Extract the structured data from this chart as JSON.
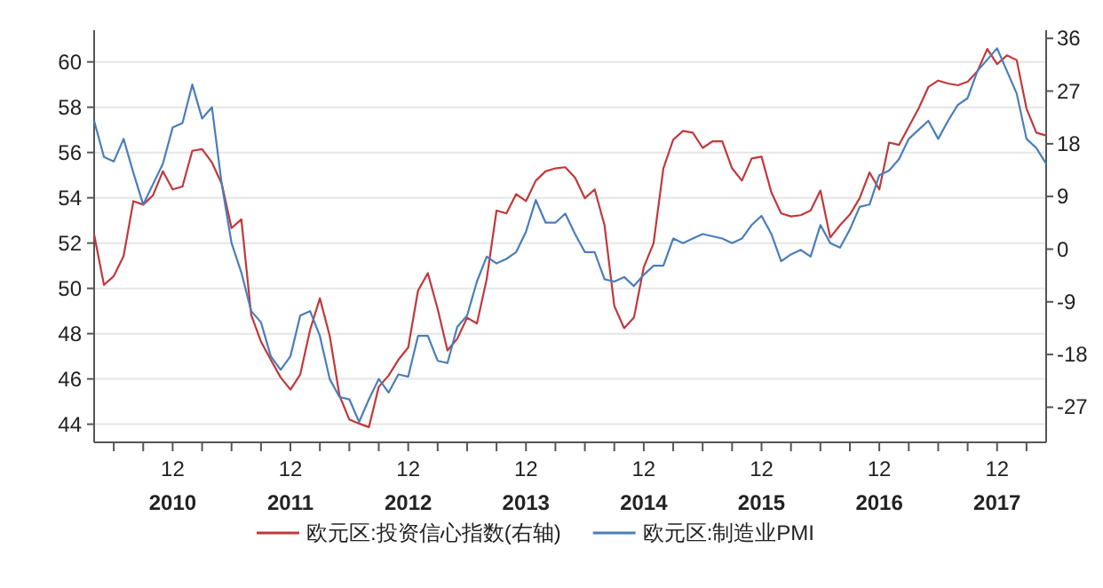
{
  "chart_data": {
    "type": "line",
    "grid": "y",
    "legend": "bottom",
    "x": [
      "2010-04",
      "2010-05",
      "2010-06",
      "2010-07",
      "2010-08",
      "2010-09",
      "2010-10",
      "2010-11",
      "2010-12",
      "2011-01",
      "2011-02",
      "2011-03",
      "2011-04",
      "2011-05",
      "2011-06",
      "2011-07",
      "2011-08",
      "2011-09",
      "2011-10",
      "2011-11",
      "2011-12",
      "2012-01",
      "2012-02",
      "2012-03",
      "2012-04",
      "2012-05",
      "2012-06",
      "2012-07",
      "2012-08",
      "2012-09",
      "2012-10",
      "2012-11",
      "2012-12",
      "2013-01",
      "2013-02",
      "2013-03",
      "2013-04",
      "2013-05",
      "2013-06",
      "2013-07",
      "2013-08",
      "2013-09",
      "2013-10",
      "2013-11",
      "2013-12",
      "2014-01",
      "2014-02",
      "2014-03",
      "2014-04",
      "2014-05",
      "2014-06",
      "2014-07",
      "2014-08",
      "2014-09",
      "2014-10",
      "2014-11",
      "2014-12",
      "2015-01",
      "2015-02",
      "2015-03",
      "2015-04",
      "2015-05",
      "2015-06",
      "2015-07",
      "2015-08",
      "2015-09",
      "2015-10",
      "2015-11",
      "2015-12",
      "2016-01",
      "2016-02",
      "2016-03",
      "2016-04",
      "2016-05",
      "2016-06",
      "2016-07",
      "2016-08",
      "2016-09",
      "2016-10",
      "2016-11",
      "2016-12",
      "2017-01",
      "2017-02",
      "2017-03",
      "2017-04",
      "2017-05",
      "2017-06",
      "2017-07",
      "2017-08",
      "2017-09",
      "2017-10",
      "2017-11",
      "2017-12",
      "2018-01",
      "2018-02",
      "2018-03",
      "2018-04",
      "2018-05"
    ],
    "xlim": [
      "2010-04",
      "2018-05"
    ],
    "xticks": [
      {
        "value": "2010-06",
        "label": null
      },
      {
        "value": "2010-09",
        "label": null
      },
      {
        "value": "2010-12",
        "label": "12\n2010"
      },
      {
        "value": "2011-03",
        "label": null
      },
      {
        "value": "2011-06",
        "label": null
      },
      {
        "value": "2011-09",
        "label": null
      },
      {
        "value": "2011-12",
        "label": "12\n2011"
      },
      {
        "value": "2012-03",
        "label": null
      },
      {
        "value": "2012-06",
        "label": null
      },
      {
        "value": "2012-09",
        "label": null
      },
      {
        "value": "2012-12",
        "label": "12\n2012"
      },
      {
        "value": "2013-03",
        "label": null
      },
      {
        "value": "2013-06",
        "label": null
      },
      {
        "value": "2013-09",
        "label": null
      },
      {
        "value": "2013-12",
        "label": "12\n2013"
      },
      {
        "value": "2014-03",
        "label": null
      },
      {
        "value": "2014-06",
        "label": null
      },
      {
        "value": "2014-09",
        "label": null
      },
      {
        "value": "2014-12",
        "label": "12\n2014"
      },
      {
        "value": "2015-03",
        "label": null
      },
      {
        "value": "2015-06",
        "label": null
      },
      {
        "value": "2015-09",
        "label": null
      },
      {
        "value": "2015-12",
        "label": "12\n2015"
      },
      {
        "value": "2016-03",
        "label": null
      },
      {
        "value": "2016-06",
        "label": null
      },
      {
        "value": "2016-09",
        "label": null
      },
      {
        "value": "2016-12",
        "label": "12\n2016"
      },
      {
        "value": "2017-03",
        "label": null
      },
      {
        "value": "2017-06",
        "label": null
      },
      {
        "value": "2017-09",
        "label": null
      },
      {
        "value": "2017-12",
        "label": "12\n2017"
      },
      {
        "value": "2018-03",
        "label": null
      }
    ],
    "ylim": [
      43.2,
      61.4
    ],
    "yticks": [
      44,
      46,
      48,
      50,
      52,
      54,
      56,
      58,
      60
    ],
    "y2lim": [
      -33,
      37.4
    ],
    "y2ticks": [
      -27,
      -18,
      -9,
      0,
      9,
      18,
      27,
      36
    ],
    "series": [
      {
        "name": "欧元区:投资信心指数(右轴)",
        "color": "#c0393b",
        "axis": "y2",
        "values": [
          2.5,
          -6.1,
          -4.6,
          -1.2,
          8.2,
          7.6,
          9.2,
          13.3,
          10.2,
          10.7,
          16.8,
          17.1,
          14.8,
          11.2,
          3.6,
          5.1,
          -11.2,
          -15.8,
          -18.9,
          -21.9,
          -24.0,
          -21.4,
          -13.8,
          -8.4,
          -14.8,
          -25.0,
          -29.1,
          -29.8,
          -30.4,
          -23.5,
          -21.6,
          -18.9,
          -16.8,
          -7.1,
          -4.1,
          -10.2,
          -17.3,
          -15.3,
          -11.7,
          -12.7,
          -5.1,
          6.6,
          6.1,
          9.4,
          8.2,
          11.7,
          13.3,
          13.8,
          14.0,
          12.2,
          8.7,
          10.2,
          4.1,
          -9.7,
          -13.5,
          -11.7,
          -3.1,
          1.0,
          13.8,
          18.7,
          20.2,
          19.9,
          17.3,
          18.4,
          18.4,
          13.8,
          11.7,
          15.5,
          15.8,
          9.7,
          6.1,
          5.6,
          5.8,
          6.6,
          10.0,
          2.0,
          4.1,
          5.9,
          8.7,
          13.1,
          10.2,
          18.2,
          17.8,
          20.9,
          24.0,
          27.7,
          28.8,
          28.3,
          28.0,
          28.6,
          30.4,
          34.2,
          31.6,
          33.1,
          32.3,
          24.0,
          19.9,
          19.4
        ]
      },
      {
        "name": "欧元区:制造业PMI",
        "color": "#4a7ebb",
        "axis": "y",
        "values": [
          57.4,
          55.8,
          55.6,
          56.6,
          55.1,
          53.7,
          54.6,
          55.5,
          57.1,
          57.3,
          59.0,
          57.5,
          58.0,
          54.6,
          52.0,
          50.7,
          49.0,
          48.5,
          47.0,
          46.4,
          47.0,
          48.8,
          49.0,
          47.9,
          46.0,
          45.2,
          45.1,
          44.1,
          45.1,
          46.0,
          45.4,
          46.2,
          46.1,
          47.9,
          47.9,
          46.8,
          46.7,
          48.3,
          48.8,
          50.3,
          51.4,
          51.1,
          51.3,
          51.6,
          52.5,
          53.9,
          52.9,
          52.9,
          53.3,
          52.4,
          51.6,
          51.6,
          50.4,
          50.3,
          50.5,
          50.1,
          50.6,
          51.0,
          51.0,
          52.2,
          52.0,
          52.2,
          52.4,
          52.3,
          52.2,
          52.0,
          52.2,
          52.8,
          53.2,
          52.4,
          51.2,
          51.5,
          51.7,
          51.4,
          52.8,
          52.0,
          51.8,
          52.6,
          53.6,
          53.7,
          55.0,
          55.2,
          55.7,
          56.6,
          57.0,
          57.4,
          56.6,
          57.4,
          58.1,
          58.4,
          59.6,
          60.1,
          60.6,
          59.6,
          58.6,
          56.6,
          56.2,
          55.5
        ]
      }
    ]
  }
}
